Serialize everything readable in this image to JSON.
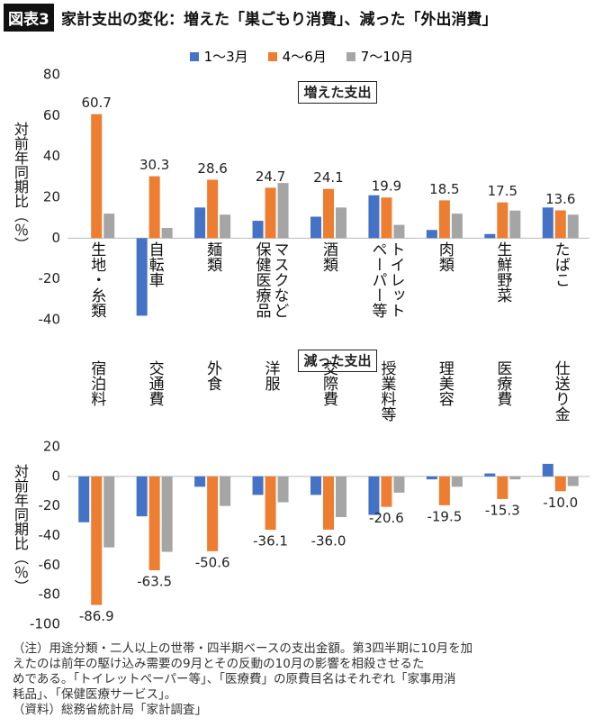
{
  "header": {
    "badge": "図表3",
    "title": "家計支出の変化：増えた「巣ごもり消費」、減った「外出消費」"
  },
  "chart_data": [
    {
      "type": "bar",
      "title": "増えた支出",
      "y_label": "対前年同期比（％）",
      "categories": [
        "生地・糸類",
        "自転車",
        "麺類",
        "マスクなど保健医療品",
        "酒類",
        "トイレットペーパー等",
        "肉類",
        "生鮮野菜",
        "たばこ"
      ],
      "series": [
        {
          "name": "1～3月",
          "color": "#4472c4",
          "values": [
            0,
            -38,
            15,
            8.5,
            10.5,
            21,
            4,
            2,
            15
          ]
        },
        {
          "name": "4～6月",
          "color": "#ed7d31",
          "values": [
            60.7,
            30.3,
            28.6,
            24.7,
            24.1,
            19.9,
            18.5,
            17.5,
            13.6
          ],
          "data_labels": true
        },
        {
          "name": "7～10月",
          "color": "#a5a5a5",
          "values": [
            12,
            5,
            11.5,
            27,
            15,
            6.5,
            12,
            13.5,
            11.5
          ]
        }
      ],
      "ylim": [
        -40,
        80
      ],
      "yticks": [
        -40,
        -20,
        0,
        20,
        40,
        60,
        80
      ],
      "grid": false
    },
    {
      "type": "bar",
      "title": "減った支出",
      "y_label": "対前年同期比（％）",
      "categories": [
        "宿泊料",
        "交通費",
        "外食",
        "洋服",
        "交際費",
        "授業料等",
        "理美容",
        "医療費",
        "仕送り金"
      ],
      "series": [
        {
          "color": "#4472c4",
          "values": [
            -31,
            -27,
            -7,
            -12.5,
            -12.5,
            -26,
            -2,
            2,
            8.5
          ]
        },
        {
          "color": "#ed7d31",
          "values": [
            -86.9,
            -63.5,
            -50.6,
            -36.1,
            -36.0,
            -20.6,
            -19.5,
            -15.3,
            -10.0
          ],
          "value_labels": [
            "-86.9",
            "-63.5",
            "-50.6",
            "-36.1",
            "-36.0",
            "-20.6",
            "-19.5",
            "-15.3",
            "-10.0"
          ],
          "data_labels": true
        },
        {
          "color": "#a5a5a5",
          "values": [
            -48,
            -51,
            -20,
            -17.5,
            -27.5,
            -11,
            -7,
            -2,
            -6.5
          ]
        }
      ],
      "ylim": [
        -100,
        20
      ],
      "yticks": [
        -100,
        -80,
        -60,
        -40,
        -20,
        0,
        20
      ],
      "grid": false
    }
  ],
  "notes": [
    "（注）用途分類・二人以上の世帯・四半期ベースの支出金額。第3四半期に10月を加",
    "えたのは前年の駆け込み需要の9月とその反動の10月の影響を相殺させるた",
    "めである。「トイレットペーパー等」、「医療費」の原費目名はそれぞれ「家事用消",
    "耗品」、「保健医療サービス」。",
    "（資料）総務省統計局「家計調査」"
  ]
}
